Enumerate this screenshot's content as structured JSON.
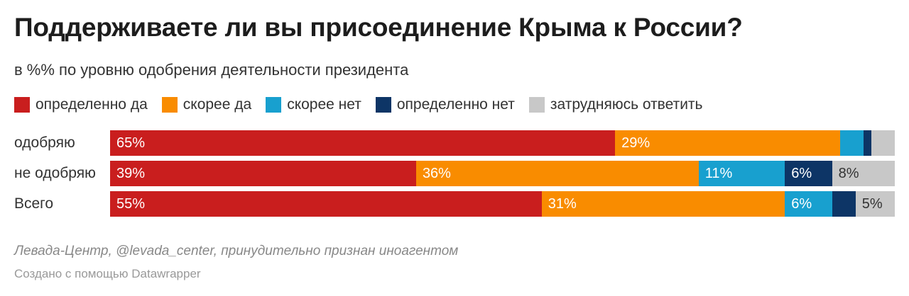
{
  "chart_data": {
    "type": "bar",
    "orientation": "horizontal-stacked",
    "title": "Поддерживаете ли вы присоединение Крыма к России?",
    "subtitle": "в %% по уровню одобрения деятельности президента",
    "ylim": [
      0,
      100
    ],
    "legend_position": "top",
    "categories": [
      "одобряю",
      "не одобряю",
      "Всего"
    ],
    "series": [
      {
        "name": "определенно да",
        "color": "#c91e1e",
        "text_color": "#ffffff",
        "values": [
          65,
          39,
          55
        ],
        "labels": [
          "65%",
          "39%",
          "55%"
        ]
      },
      {
        "name": "скорее да",
        "color": "#f98c00",
        "text_color": "#ffffff",
        "values": [
          29,
          36,
          31
        ],
        "labels": [
          "29%",
          "36%",
          "31%"
        ]
      },
      {
        "name": "скорее нет",
        "color": "#18a0cf",
        "text_color": "#ffffff",
        "values": [
          3,
          11,
          6
        ],
        "labels": [
          "",
          "11%",
          "6%"
        ]
      },
      {
        "name": "определенно нет",
        "color": "#0d3566",
        "text_color": "#ffffff",
        "values": [
          1,
          6,
          3
        ],
        "labels": [
          "",
          "6%",
          ""
        ]
      },
      {
        "name": "затрудняюсь ответить",
        "color": "#c8c8c8",
        "text_color": "#333333",
        "values": [
          3,
          8,
          5
        ],
        "labels": [
          "",
          "8%",
          "5%"
        ]
      }
    ]
  },
  "footer": {
    "source": "Левада-Центр, @levada_center, принудительно признан иноагентом",
    "credit": "Создано с помощью Datawrapper"
  }
}
